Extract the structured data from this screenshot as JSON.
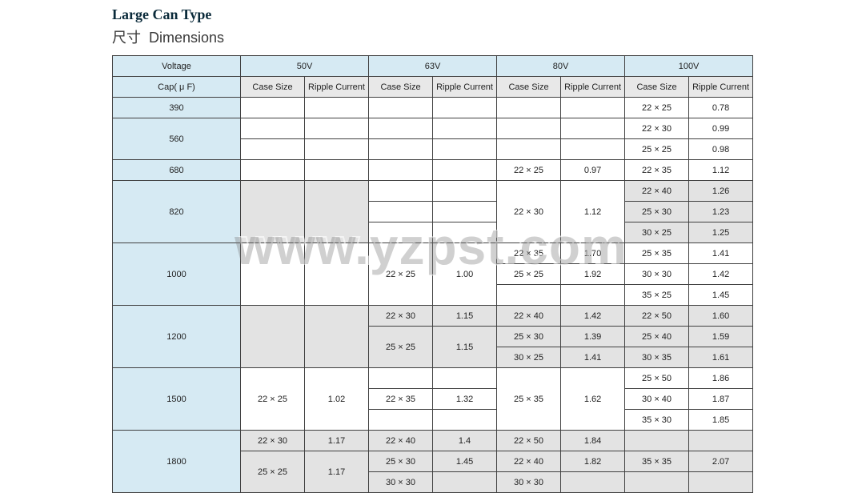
{
  "title": "Large Can Type",
  "subheading_cn": "尺寸",
  "subheading_en": "Dimensions",
  "watermark": "www.yzpst.com",
  "headers": {
    "voltage": "Voltage",
    "cap": "Cap( μ F)",
    "case_size": "Case Size",
    "ripple": "Ripple Current",
    "volts": [
      "50V",
      "63V",
      "80V",
      "100V"
    ]
  },
  "rows": [
    {
      "cap": "390",
      "cap_rowspan": 1,
      "alt": false,
      "cells": [
        {
          "cs50": "",
          "rc50": "",
          "cs63": "",
          "rc63": "",
          "cs80": "",
          "rc80": "",
          "cs100": "22 × 25",
          "rc100": "0.78"
        }
      ]
    },
    {
      "cap": "560",
      "cap_rowspan": 2,
      "alt": false,
      "cells": [
        {
          "cs50": "",
          "rc50": "",
          "cs63": "",
          "rc63": "",
          "cs80": "",
          "rc80": "",
          "cs100": "22 × 30",
          "rc100": "0.99"
        },
        {
          "cs50": "",
          "rc50": "",
          "cs63": "",
          "rc63": "",
          "cs80": "",
          "rc80": "",
          "cs100": "25 × 25",
          "rc100": "0.98"
        }
      ]
    },
    {
      "cap": "680",
      "cap_rowspan": 1,
      "alt": false,
      "cells": [
        {
          "cs50": "",
          "rc50": "",
          "cs63": "",
          "rc63": "",
          "cs80": "22 × 25",
          "rc80": "0.97",
          "cs100": "22 × 35",
          "rc100": "1.12"
        }
      ]
    },
    {
      "cap": "820",
      "cap_rowspan": 3,
      "alt": true,
      "altcols": {
        "50": true,
        "63": false,
        "80": false,
        "100": true
      },
      "merge": {
        "50": 3,
        "80": 3
      },
      "cells": [
        {
          "cs50": "",
          "rc50": "",
          "cs63": "",
          "rc63": "",
          "cs80": "22 × 30",
          "rc80": "1.12",
          "cs100": "22 × 40",
          "rc100": "1.26"
        },
        {
          "cs63": "",
          "rc63": "",
          "cs100": "25 × 30",
          "rc100": "1.23"
        },
        {
          "cs63": "",
          "rc63": "",
          "cs100": "30 × 25",
          "rc100": "1.25"
        }
      ]
    },
    {
      "cap": "1000",
      "cap_rowspan": 3,
      "alt": false,
      "merge": {
        "50": 3,
        "63": 3
      },
      "cells80last": true,
      "cells": [
        {
          "cs50": "",
          "rc50": "",
          "cs63": "22 × 25",
          "rc63": "1.00",
          "cs80": "22 × 35",
          "rc80": "1.70",
          "cs100": "25 × 35",
          "rc100": "1.41"
        },
        {
          "cs80": "25 × 25",
          "rc80": "1.92",
          "cs100": "30 × 30",
          "rc100": "1.42"
        },
        {
          "cs80": "",
          "rc80": "",
          "cs100": "35 × 25",
          "rc100": "1.45"
        }
      ]
    },
    {
      "cap": "1200",
      "cap_rowspan": 3,
      "alt": true,
      "altcols": {
        "50": true,
        "63": true,
        "80": true,
        "100": true
      },
      "merge": {
        "50": 3
      },
      "merge63b": 2,
      "cells": [
        {
          "cs50": "",
          "rc50": "",
          "cs63": "22 × 30",
          "rc63": "1.15",
          "cs80": "22 × 40",
          "rc80": "1.42",
          "cs100": "22 × 50",
          "rc100": "1.60"
        },
        {
          "cs63": "25 × 25",
          "rc63": "1.15",
          "cs80": "25 × 30",
          "rc80": "1.39",
          "cs100": "25 × 40",
          "rc100": "1.59"
        },
        {
          "cs80": "30 × 25",
          "rc80": "1.41",
          "cs100": "30 × 35",
          "rc100": "1.61"
        }
      ]
    },
    {
      "cap": "1500",
      "cap_rowspan": 3,
      "alt": false,
      "merge": {
        "50": 3,
        "80": 3
      },
      "cells": [
        {
          "cs50": "22 × 25",
          "rc50": "1.02",
          "cs63": "",
          "rc63": "",
          "cs80": "25 × 35",
          "rc80": "1.62",
          "cs100": "25 × 50",
          "rc100": "1.86"
        },
        {
          "cs63": "22 × 35",
          "rc63": "1.32",
          "cs100": "30 × 40",
          "rc100": "1.87"
        },
        {
          "cs63": "",
          "rc63": "",
          "cs100": "35 × 30",
          "rc100": "1.85"
        }
      ],
      "firstrow63empty": true
    },
    {
      "cap": "1800",
      "cap_rowspan": 3,
      "alt": true,
      "altcols": {
        "50": true,
        "63": true,
        "80": true,
        "100": true
      },
      "cells": [
        {
          "cs50": "22 × 30",
          "rc50": "1.17",
          "cs63": "22 × 40",
          "rc63": "1.4",
          "cs80": "22 × 50",
          "rc80": "1.84",
          "cs100": "",
          "rc100": ""
        },
        {
          "cs50": "25 × 25",
          "rc50": "1.17",
          "cs63": "25 × 30",
          "rc63": "1.45",
          "cs80": "22 × 40",
          "rc80": "1.82",
          "cs100": "35 × 35",
          "rc100": "2.07"
        },
        {
          "cs50": "",
          "rc50": "",
          "cs63": "30 × 30",
          "rc63": "",
          "cs80": "30 × 30",
          "rc80": "",
          "cs100": "",
          "rc100": ""
        }
      ],
      "merge50b": 2
    }
  ]
}
